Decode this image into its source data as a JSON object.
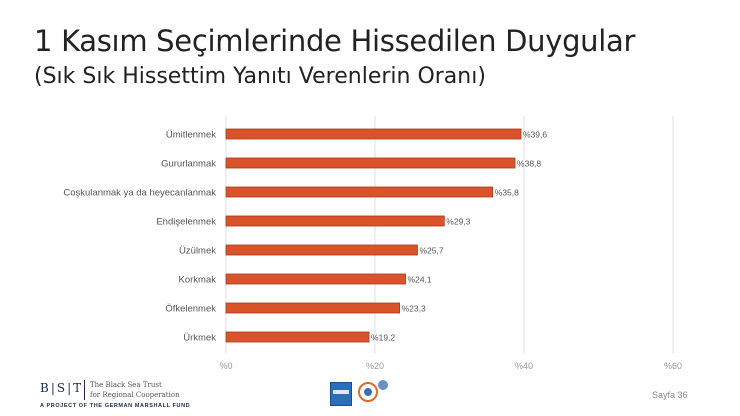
{
  "title": "1 Kasım Seçimlerinde Hissedilen Duygular",
  "subtitle": "(Sık Sık Hissettim Yanıtı Verenlerin Oranı)",
  "chart_data": {
    "type": "bar",
    "orientation": "horizontal",
    "categories": [
      "Ümitlenmek",
      "Gururlanmak",
      "Coşkulanmak ya da heyecanlanmak",
      "Endişelenmek",
      "Üzülmek",
      "Korkmak",
      "Öfkelenmek",
      "Ürkmek"
    ],
    "values": [
      39.6,
      38.8,
      35.8,
      29.3,
      25.7,
      24.1,
      23.3,
      19.2
    ],
    "data_labels": [
      "%39,6",
      "%38,8",
      "%35,8",
      "%29,3",
      "%25,7",
      "%24,1",
      "%23,3",
      "%19,2"
    ],
    "xlim": [
      0,
      60
    ],
    "xticks": [
      0,
      20,
      40,
      60
    ],
    "xtick_labels": [
      "%0",
      "%20",
      "%40",
      "%60"
    ],
    "grid": true,
    "bar_color": "#d9532b",
    "bar_edge_color": "#a83b1c"
  },
  "footer": {
    "logo": "B|S|T",
    "org_line1": "The Black Sea Trust",
    "org_line2": "for Regional Cooperation",
    "project": "A PROJECT OF THE GERMAN MARSHALL FUND",
    "page": "Sayfa 36"
  }
}
